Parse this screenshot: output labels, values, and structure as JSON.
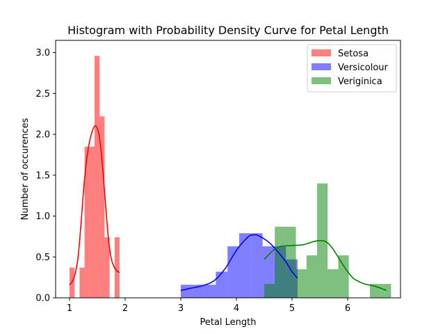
{
  "chart_data": {
    "type": "bar",
    "title": "Histogram with Probability Density Curve for Petal Length",
    "xlabel": "Petal Length",
    "ylabel": "Number of occurences",
    "xlim": [
      0.75,
      6.95
    ],
    "ylim": [
      0,
      3.15
    ],
    "xticks": [
      1,
      2,
      3,
      4,
      5,
      6
    ],
    "yticks": [
      0.0,
      0.5,
      1.0,
      1.5,
      2.0,
      2.5,
      3.0
    ],
    "xtick_labels": [
      "1",
      "2",
      "3",
      "4",
      "5",
      "6"
    ],
    "ytick_labels": [
      "0.0",
      "0.5",
      "1.0",
      "1.5",
      "2.0",
      "2.5",
      "3.0"
    ],
    "grid": false,
    "legend_position": "top-right",
    "series": [
      {
        "name": "Setosa",
        "bar_color": "#ff0000",
        "line_color": "#ff0000",
        "bin_edges": [
          1.0,
          1.09,
          1.18,
          1.27,
          1.36,
          1.45,
          1.54,
          1.63,
          1.72,
          1.81,
          1.9
        ],
        "counts": [
          0.37,
          0.0,
          0.37,
          1.85,
          1.85,
          2.96,
          2.22,
          0.74,
          0.0,
          0.74
        ],
        "density_curve": [
          [
            1.0,
            0.16
          ],
          [
            1.05,
            0.2
          ],
          [
            1.1,
            0.29
          ],
          [
            1.15,
            0.48
          ],
          [
            1.2,
            0.85
          ],
          [
            1.25,
            1.3
          ],
          [
            1.3,
            1.65
          ],
          [
            1.35,
            1.88
          ],
          [
            1.4,
            2.02
          ],
          [
            1.45,
            2.1
          ],
          [
            1.5,
            2.07
          ],
          [
            1.55,
            1.9
          ],
          [
            1.6,
            1.55
          ],
          [
            1.65,
            1.12
          ],
          [
            1.7,
            0.72
          ],
          [
            1.75,
            0.48
          ],
          [
            1.8,
            0.38
          ],
          [
            1.85,
            0.33
          ],
          [
            1.9,
            0.31
          ]
        ]
      },
      {
        "name": "Versicolour",
        "bar_color": "#0000ff",
        "line_color": "#0000ff",
        "bin_edges": [
          3.0,
          3.21,
          3.42,
          3.63,
          3.84,
          4.05,
          4.26,
          4.47,
          4.68,
          4.89,
          5.1
        ],
        "counts": [
          0.16,
          0.16,
          0.16,
          0.32,
          0.63,
          0.79,
          0.79,
          0.63,
          0.63,
          0.47
        ],
        "density_curve": [
          [
            3.0,
            0.09
          ],
          [
            3.2,
            0.12
          ],
          [
            3.4,
            0.15
          ],
          [
            3.6,
            0.21
          ],
          [
            3.8,
            0.36
          ],
          [
            4.0,
            0.58
          ],
          [
            4.2,
            0.74
          ],
          [
            4.3,
            0.77
          ],
          [
            4.4,
            0.76
          ],
          [
            4.6,
            0.67
          ],
          [
            4.8,
            0.52
          ],
          [
            4.9,
            0.43
          ],
          [
            5.0,
            0.32
          ],
          [
            5.1,
            0.24
          ]
        ]
      },
      {
        "name": "Veriginica",
        "bar_color": "#008000",
        "line_color": "#008000",
        "bin_edges": [
          4.5,
          4.69,
          4.88,
          5.07,
          5.26,
          5.45,
          5.64,
          5.83,
          6.02,
          6.21,
          6.4,
          6.59,
          6.78
        ],
        "counts": [
          0.17,
          0.87,
          0.87,
          0.35,
          0.52,
          1.4,
          0.35,
          0.52,
          0.0,
          0.0,
          0.17,
          0.17
        ],
        "density_curve": [
          [
            4.5,
            0.47
          ],
          [
            4.6,
            0.54
          ],
          [
            4.7,
            0.6
          ],
          [
            4.8,
            0.63
          ],
          [
            5.0,
            0.64
          ],
          [
            5.2,
            0.65
          ],
          [
            5.4,
            0.69
          ],
          [
            5.5,
            0.7
          ],
          [
            5.6,
            0.69
          ],
          [
            5.7,
            0.63
          ],
          [
            5.8,
            0.53
          ],
          [
            5.9,
            0.42
          ],
          [
            6.0,
            0.32
          ],
          [
            6.1,
            0.24
          ],
          [
            6.2,
            0.2
          ],
          [
            6.3,
            0.17
          ],
          [
            6.5,
            0.14
          ],
          [
            6.7,
            0.09
          ]
        ]
      }
    ]
  }
}
